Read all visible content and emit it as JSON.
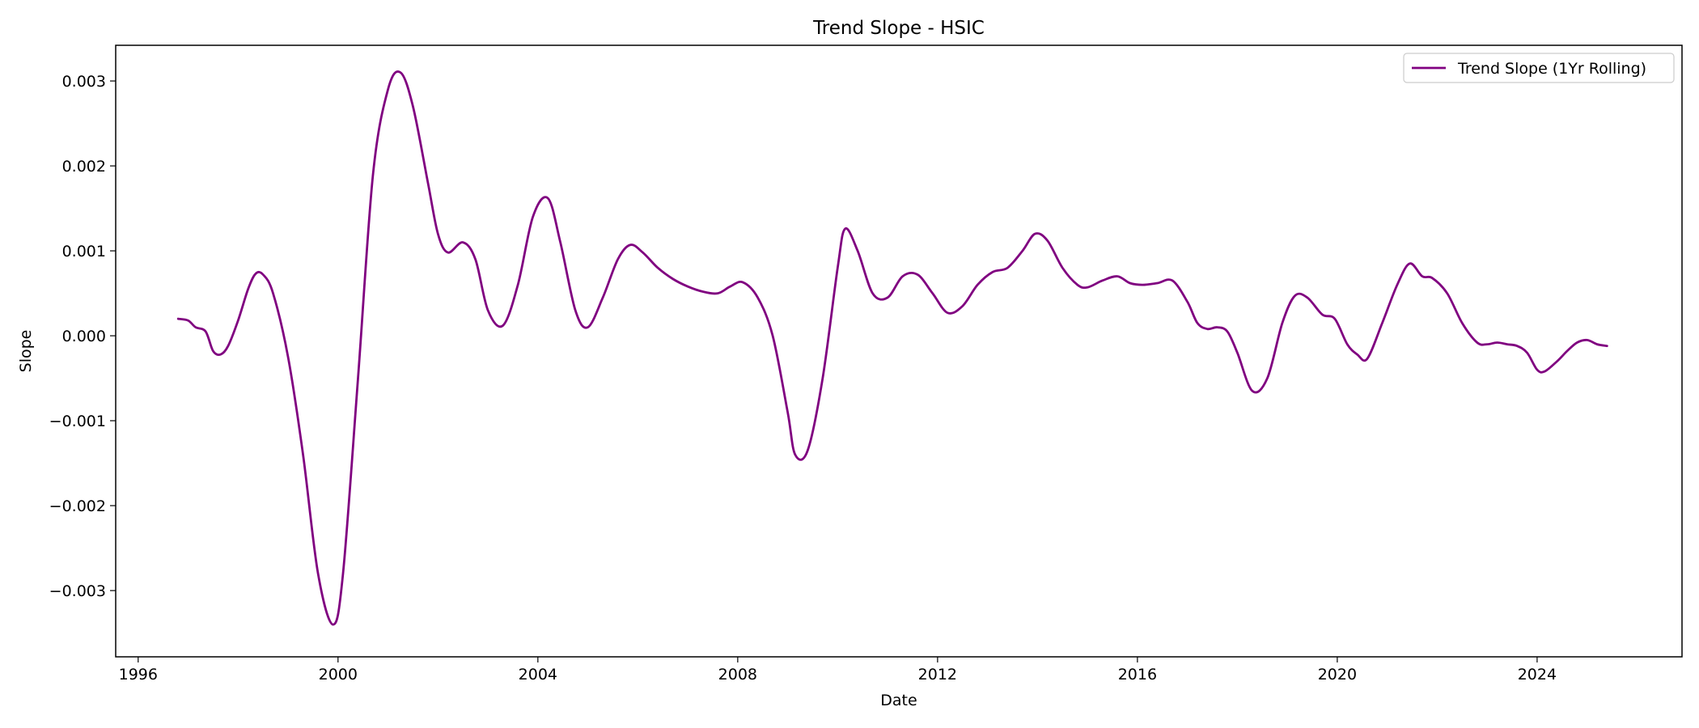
{
  "chart_data": {
    "type": "line",
    "title": "Trend Slope - HSIC",
    "xlabel": "Date",
    "ylabel": "Slope",
    "xlim": [
      1995.55,
      2026.9
    ],
    "ylim": [
      -0.00378,
      0.00342
    ],
    "x_ticks": [
      1996,
      2000,
      2004,
      2008,
      2012,
      2016,
      2020,
      2024
    ],
    "y_ticks": [
      -0.003,
      -0.002,
      -0.001,
      0.0,
      0.001,
      0.002,
      0.003
    ],
    "y_tick_labels": [
      "−0.003",
      "−0.002",
      "−0.001",
      "0.000",
      "0.001",
      "0.002",
      "0.003"
    ],
    "grid": false,
    "legend_position": "top-right",
    "colors": {
      "series": "#800080"
    },
    "series": [
      {
        "name": "Trend Slope (1Yr Rolling)",
        "x": [
          1996.8,
          1997.0,
          1997.15,
          1997.35,
          1997.5,
          1997.65,
          1997.8,
          1998.0,
          1998.2,
          1998.35,
          1998.5,
          1998.7,
          1999.0,
          1999.3,
          1999.6,
          1999.9,
          2000.1,
          2000.4,
          2000.7,
          2001.0,
          2001.25,
          2001.5,
          2001.8,
          2002.0,
          2002.2,
          2002.5,
          2002.75,
          2003.0,
          2003.3,
          2003.6,
          2003.9,
          2004.2,
          2004.45,
          2004.75,
          2005.0,
          2005.3,
          2005.6,
          2005.85,
          2006.1,
          2006.4,
          2006.7,
          2007.0,
          2007.3,
          2007.6,
          2007.85,
          2008.1,
          2008.4,
          2008.7,
          2009.0,
          2009.15,
          2009.4,
          2009.7,
          2010.0,
          2010.15,
          2010.4,
          2010.7,
          2011.0,
          2011.3,
          2011.6,
          2011.9,
          2012.2,
          2012.5,
          2012.8,
          2013.1,
          2013.4,
          2013.7,
          2013.95,
          2014.2,
          2014.5,
          2014.8,
          2015.0,
          2015.3,
          2015.6,
          2015.85,
          2016.1,
          2016.4,
          2016.7,
          2017.0,
          2017.2,
          2017.4,
          2017.6,
          2017.8,
          2018.0,
          2018.3,
          2018.6,
          2018.9,
          2019.15,
          2019.4,
          2019.7,
          2019.95,
          2020.2,
          2020.4,
          2020.6,
          2020.9,
          2021.2,
          2021.45,
          2021.7,
          2021.9,
          2022.2,
          2022.5,
          2022.8,
          2023.0,
          2023.2,
          2023.4,
          2023.6,
          2023.8,
          2024.0,
          2024.15,
          2024.4,
          2024.6,
          2024.8,
          2025.0,
          2025.2,
          2025.4
        ],
        "y": [
          0.0002,
          0.00018,
          0.0001,
          5e-05,
          -0.00018,
          -0.00022,
          -0.00012,
          0.00018,
          0.00055,
          0.00073,
          0.00072,
          0.0005,
          -0.00025,
          -0.0014,
          -0.0028,
          -0.0034,
          -0.0028,
          -0.0005,
          0.0019,
          0.0029,
          0.0031,
          0.0027,
          0.0018,
          0.0012,
          0.00098,
          0.0011,
          0.0009,
          0.0003,
          0.00012,
          0.0006,
          0.0014,
          0.00162,
          0.0011,
          0.0003,
          0.0001,
          0.00045,
          0.0009,
          0.00107,
          0.00098,
          0.0008,
          0.00067,
          0.00058,
          0.00052,
          0.0005,
          0.00058,
          0.00063,
          0.00045,
          0.0,
          -0.0009,
          -0.0014,
          -0.00135,
          -0.0005,
          0.0008,
          0.00126,
          0.001,
          0.0005,
          0.00045,
          0.0007,
          0.00072,
          0.0005,
          0.00027,
          0.00035,
          0.0006,
          0.00075,
          0.0008,
          0.001,
          0.0012,
          0.00112,
          0.0008,
          0.0006,
          0.00057,
          0.00065,
          0.0007,
          0.00062,
          0.0006,
          0.00062,
          0.00065,
          0.0004,
          0.00015,
          8e-05,
          0.0001,
          5e-05,
          -0.0002,
          -0.00065,
          -0.0005,
          0.00015,
          0.00047,
          0.00045,
          0.00025,
          0.0002,
          -0.0001,
          -0.00022,
          -0.00027,
          0.00015,
          0.0006,
          0.00085,
          0.0007,
          0.00068,
          0.0005,
          0.00015,
          -8e-05,
          -0.0001,
          -8e-05,
          -0.0001,
          -0.00012,
          -0.0002,
          -0.0004,
          -0.00042,
          -0.0003,
          -0.00018,
          -8e-05,
          -5e-05,
          -0.0001,
          -0.00012
        ]
      }
    ]
  }
}
